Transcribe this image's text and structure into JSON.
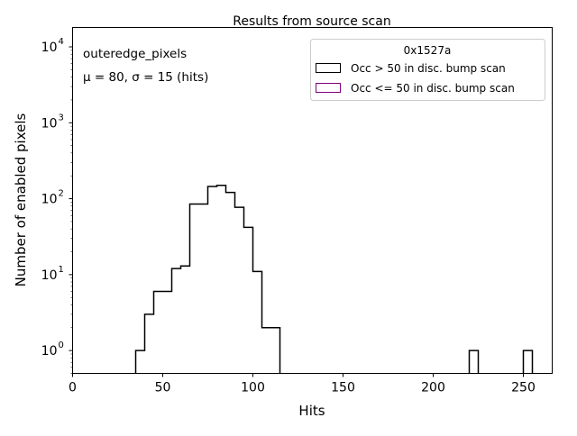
{
  "chart_data": {
    "type": "bar",
    "subtype": "step-histogram",
    "title": "Results from source scan",
    "xlabel": "Hits",
    "ylabel": "Number of enabled pixels",
    "xlim": [
      0,
      266
    ],
    "ylim": [
      0.5,
      18000
    ],
    "yscale": "log",
    "xticks": [
      0,
      50,
      100,
      150,
      200,
      250
    ],
    "xtick_labels": [
      "0",
      "50",
      "100",
      "150",
      "200",
      "250"
    ],
    "yticks": [
      1,
      10,
      100,
      1000,
      10000
    ],
    "ytick_base": "10",
    "ytick_exponents": [
      "0",
      "1",
      "2",
      "3",
      "4"
    ],
    "grid": false,
    "annotations": [
      "outeredge_pixels",
      "μ = 80, σ = 15 (hits)"
    ],
    "legend": {
      "title": "0x1527a",
      "placement": "top-right",
      "entries": [
        {
          "label": "Occ > 50 in disc. bump scan",
          "color": "#000000"
        },
        {
          "label": "Occ <= 50 in disc. bump scan",
          "color": "#800080"
        }
      ]
    },
    "series": [
      {
        "name": "Occ > 50 in disc. bump scan",
        "color": "#000000",
        "bins": [
          [
            35,
            40,
            1
          ],
          [
            40,
            45,
            3
          ],
          [
            45,
            50,
            6
          ],
          [
            50,
            55,
            6
          ],
          [
            55,
            60,
            12
          ],
          [
            60,
            65,
            13
          ],
          [
            65,
            70,
            85
          ],
          [
            70,
            75,
            85
          ],
          [
            75,
            80,
            145
          ],
          [
            80,
            85,
            150
          ],
          [
            85,
            90,
            121
          ],
          [
            90,
            95,
            77
          ],
          [
            95,
            100,
            42
          ],
          [
            100,
            105,
            11
          ],
          [
            105,
            110,
            2
          ],
          [
            110,
            115,
            2
          ],
          [
            220,
            225,
            1
          ],
          [
            250,
            255,
            1
          ]
        ]
      },
      {
        "name": "Occ <= 50 in disc. bump scan",
        "color": "#800080",
        "bins": []
      }
    ]
  }
}
